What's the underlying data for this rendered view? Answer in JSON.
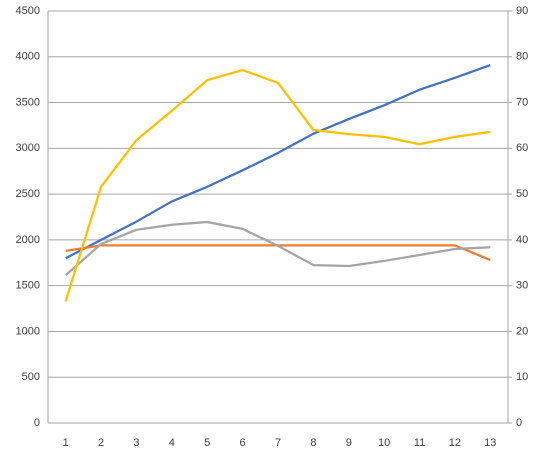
{
  "chart_data": {
    "type": "line",
    "categories": [
      "1",
      "2",
      "3",
      "4",
      "5",
      "6",
      "7",
      "8",
      "9",
      "10",
      "11",
      "12",
      "13"
    ],
    "series": [
      {
        "color": "#4472c4",
        "axis": "y",
        "values": [
          1800,
          2000,
          2200,
          2420,
          2580,
          2760,
          2950,
          3160,
          3320,
          3470,
          3640,
          3770,
          3910
        ]
      },
      {
        "color": "#ed7d31",
        "axis": "y",
        "values": [
          1880,
          1940,
          1940,
          1940,
          1940,
          1940,
          1940,
          1940,
          1940,
          1940,
          1940,
          1940,
          1780
        ]
      },
      {
        "color": "#a5a5a5",
        "axis": "y2",
        "values": [
          32.3,
          39.1,
          42.2,
          43.3,
          43.9,
          42.4,
          38.7,
          34.5,
          34.3,
          35.4,
          36.7,
          38,
          38.4
        ]
      },
      {
        "color": "#ffc000",
        "axis": "y2",
        "values": [
          26.6,
          51.6,
          61.8,
          68.2,
          74.9,
          77.1,
          74.3,
          64,
          63.1,
          62.5,
          60.9,
          62.5,
          63.6
        ]
      }
    ],
    "ylim": [
      0,
      4500
    ],
    "yticks": [
      0,
      500,
      1000,
      1500,
      2000,
      2500,
      3000,
      3500,
      4000,
      4500
    ],
    "y2lim": [
      0,
      90
    ],
    "y2ticks": [
      0,
      10,
      20,
      30,
      40,
      50,
      60,
      70,
      80,
      90
    ],
    "grid": true
  }
}
